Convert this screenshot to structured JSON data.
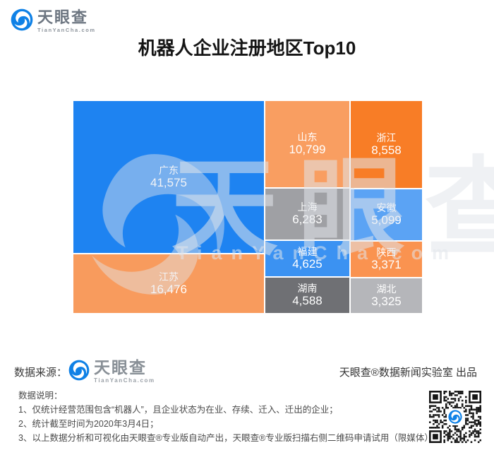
{
  "brand": {
    "name": "天眼查",
    "domain": "TianYanCha.com"
  },
  "title": "机器人企业注册地区Top10",
  "chart_data": {
    "type": "treemap",
    "title": "机器人企业注册地区Top10",
    "regions": [
      {
        "name": "广东",
        "value": 41575,
        "value_str": "41,575",
        "color": "#1E83F1"
      },
      {
        "name": "江苏",
        "value": 16476,
        "value_str": "16,476",
        "color": "#F89B5D"
      },
      {
        "name": "山东",
        "value": 10799,
        "value_str": "10,799",
        "color": "#F99E61"
      },
      {
        "name": "浙江",
        "value": 8558,
        "value_str": "8,558",
        "color": "#F87D26"
      },
      {
        "name": "上海",
        "value": 6283,
        "value_str": "6,283",
        "color": "#9FA0A4"
      },
      {
        "name": "安徽",
        "value": 5099,
        "value_str": "5,099",
        "color": "#5BA3F4"
      },
      {
        "name": "福建",
        "value": 4625,
        "value_str": "4,625",
        "color": "#3B92F2"
      },
      {
        "name": "湖南",
        "value": 4588,
        "value_str": "4,588",
        "color": "#6F7074"
      },
      {
        "name": "陕西",
        "value": 3371,
        "value_str": "3,371",
        "color": "#FA9350"
      },
      {
        "name": "湖北",
        "value": 3325,
        "value_str": "3,325",
        "color": "#B5B6BA"
      }
    ]
  },
  "watermark": {
    "text": "天眼查",
    "subtext": "TianYanCha.com"
  },
  "footer": {
    "source_label": "数据来源：",
    "credit": "天眼查®数据新闻实验室 出品"
  },
  "notes": {
    "heading": "数据说明：",
    "items": [
      "1、仅统计经营范围包含“机器人”，且企业状态为在业、存续、迁入、迁出的企业；",
      "2、统计截至时间为2020年3月4日；",
      "3、以上数据分析和可视化由天眼查®专业版自动产出，天眼查®专业版扫描右侧二维码申请试用（限媒体）。"
    ]
  }
}
